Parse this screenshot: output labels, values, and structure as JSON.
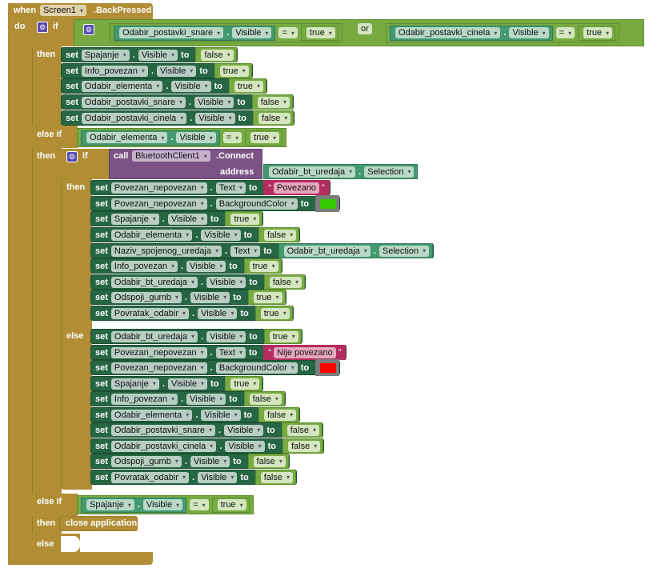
{
  "event": {
    "when": "when",
    "component": "Screen1",
    "event": ".BackPressed",
    "do": "do"
  },
  "if1": {
    "label": "if",
    "condition": {
      "left": {
        "component": "Odabir_postavki_snare",
        "prop": "Visible",
        "op": "=",
        "value": "true"
      },
      "or": "or",
      "right": {
        "component": "Odabir_postavki_cinela",
        "prop": "Visible",
        "op": "=",
        "value": "true"
      }
    },
    "then_label": "then",
    "then": [
      {
        "set": "set",
        "component": "Spajanje",
        "prop": "Visible",
        "to": "to",
        "type": "logic",
        "value": "false"
      },
      {
        "set": "set",
        "component": "Info_povezan",
        "prop": "Visible",
        "to": "to",
        "type": "logic",
        "value": "true"
      },
      {
        "set": "set",
        "component": "Odabir_elementa",
        "prop": "Visible",
        "to": "to",
        "type": "logic",
        "value": "true"
      },
      {
        "set": "set",
        "component": "Odabir_postavki_snare",
        "prop": "Visible",
        "to": "to",
        "type": "logic",
        "value": "false"
      },
      {
        "set": "set",
        "component": "Odabir_postavki_cinela",
        "prop": "Visible",
        "to": "to",
        "type": "logic",
        "value": "false"
      }
    ]
  },
  "elseif1": {
    "label": "else if",
    "condition": {
      "component": "Odabir_elementa",
      "prop": "Visible",
      "op": "=",
      "value": "true"
    },
    "then_label": "then",
    "inner_if": {
      "label": "if",
      "call": "call",
      "component": "BluetoothClient1",
      "method": ".Connect",
      "address_label": "address",
      "address": {
        "component": "Odabir_bt_uredaja",
        "prop": "Selection"
      },
      "then_label": "then",
      "then": [
        {
          "set": "set",
          "component": "Povezan_nepovezan",
          "prop": "Text",
          "to": "to",
          "type": "text",
          "value": "Povezano"
        },
        {
          "set": "set",
          "component": "Povezan_nepovezan",
          "prop": "BackgroundColor",
          "to": "to",
          "type": "color",
          "value": "#33cc00"
        },
        {
          "set": "set",
          "component": "Spajanje",
          "prop": "Visible",
          "to": "to",
          "type": "logic",
          "value": "true"
        },
        {
          "set": "set",
          "component": "Odabir_elementa",
          "prop": "Visible",
          "to": "to",
          "type": "logic",
          "value": "false"
        },
        {
          "set": "set",
          "component": "Naziv_spojenog_uredaja",
          "prop": "Text",
          "to": "to",
          "type": "getter",
          "value": {
            "component": "Odabir_bt_uredaja",
            "prop": "Selection"
          }
        },
        {
          "set": "set",
          "component": "Info_povezan",
          "prop": "Visible",
          "to": "to",
          "type": "logic",
          "value": "true"
        },
        {
          "set": "set",
          "component": "Odabir_bt_uredaja",
          "prop": "Visible",
          "to": "to",
          "type": "logic",
          "value": "false"
        },
        {
          "set": "set",
          "component": "Odspoji_gumb",
          "prop": "Visible",
          "to": "to",
          "type": "logic",
          "value": "true"
        },
        {
          "set": "set",
          "component": "Povratak_odabir",
          "prop": "Visible",
          "to": "to",
          "type": "logic",
          "value": "true"
        }
      ],
      "else_label": "else",
      "else": [
        {
          "set": "set",
          "component": "Odabir_bt_uredaja",
          "prop": "Visible",
          "to": "to",
          "type": "logic",
          "value": "true"
        },
        {
          "set": "set",
          "component": "Povezan_nepovezan",
          "prop": "Text",
          "to": "to",
          "type": "text",
          "value": "Nije povezano"
        },
        {
          "set": "set",
          "component": "Povezan_nepovezan",
          "prop": "BackgroundColor",
          "to": "to",
          "type": "color",
          "value": "#ff0000"
        },
        {
          "set": "set",
          "component": "Spajanje",
          "prop": "Visible",
          "to": "to",
          "type": "logic",
          "value": "true"
        },
        {
          "set": "set",
          "component": "Info_povezan",
          "prop": "Visible",
          "to": "to",
          "type": "logic",
          "value": "false"
        },
        {
          "set": "set",
          "component": "Odabir_elementa",
          "prop": "Visible",
          "to": "to",
          "type": "logic",
          "value": "false"
        },
        {
          "set": "set",
          "component": "Odabir_postavki_snare",
          "prop": "Visible",
          "to": "to",
          "type": "logic",
          "value": "false"
        },
        {
          "set": "set",
          "component": "Odabir_postavki_cinela",
          "prop": "Visible",
          "to": "to",
          "type": "logic",
          "value": "false"
        },
        {
          "set": "set",
          "component": "Odspoji_gumb",
          "prop": "Visible",
          "to": "to",
          "type": "logic",
          "value": "false"
        },
        {
          "set": "set",
          "component": "Povratak_odabir",
          "prop": "Visible",
          "to": "to",
          "type": "logic",
          "value": "false"
        }
      ]
    }
  },
  "elseif2": {
    "label": "else if",
    "condition": {
      "component": "Spajanje",
      "prop": "Visible",
      "op": "=",
      "value": "true"
    },
    "then_label": "then",
    "action": "close application"
  },
  "else_label": "else",
  "colors": {
    "event": "#b18e35",
    "setter": "#266643",
    "getter": "#439970",
    "logic": "#77ab41",
    "text": "#b32d5e",
    "call": "#7c5385",
    "color_block": "#7c7c7c"
  }
}
